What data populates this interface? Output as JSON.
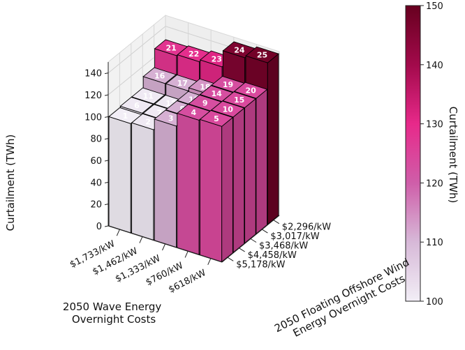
{
  "chart_data": {
    "type": "bar3d",
    "zlabel": "Curtailment (TWh)",
    "x_axis_title": [
      "2050 Wave Energy",
      "Overnight Costs"
    ],
    "y_axis_title": [
      "2050 Floating Offshore Wind",
      "Energy Overnight Costs"
    ],
    "x_categories": [
      "$618/kW",
      "$760/kW",
      "$1,333/kW",
      "$1,462/kW",
      "$1,733/kW"
    ],
    "y_categories": [
      "$5,178/kW",
      "$4,458/kW",
      "$3,468/kW",
      "$3,017/kW",
      "$2,296/kW"
    ],
    "zlim": [
      0,
      150
    ],
    "z_ticks": [
      "0",
      "20",
      "40",
      "60",
      "80",
      "100",
      "120",
      "140"
    ],
    "grid": true,
    "colorbar": {
      "label": "Curtailment (TWh)",
      "min": 100,
      "max": 150,
      "ticks": [
        "100",
        "110",
        "120",
        "130",
        "140",
        "150"
      ],
      "colors": [
        "#f2eef6",
        "#d7b9d8",
        "#cf5ea9",
        "#e7298a",
        "#a20a4b",
        "#67001f"
      ]
    },
    "bars": [
      {
        "id": "1",
        "x": "$1,733/kW",
        "y": "$5,178/kW",
        "value": 100
      },
      {
        "id": "2",
        "x": "$1,462/kW",
        "y": "$5,178/kW",
        "value": 101
      },
      {
        "id": "3",
        "x": "$1,333/kW",
        "y": "$5,178/kW",
        "value": 111
      },
      {
        "id": "4",
        "x": "$760/kW",
        "y": "$5,178/kW",
        "value": 123
      },
      {
        "id": "5",
        "x": "$618/kW",
        "y": "$5,178/kW",
        "value": 124
      },
      {
        "id": "6",
        "x": "$1,733/kW",
        "y": "$4,458/kW",
        "value": 101
      },
      {
        "id": "7",
        "x": "$1,462/kW",
        "y": "$4,458/kW",
        "value": 101
      },
      {
        "id": "8",
        "x": "$1,333/kW",
        "y": "$4,458/kW",
        "value": 111
      },
      {
        "id": "9",
        "x": "$760/kW",
        "y": "$4,458/kW",
        "value": 123
      },
      {
        "id": "10",
        "x": "$618/kW",
        "y": "$4,458/kW",
        "value": 124
      },
      {
        "id": "11",
        "x": "$1,733/kW",
        "y": "$3,468/kW",
        "value": 101
      },
      {
        "id": "12",
        "x": "$1,462/kW",
        "y": "$3,468/kW",
        "value": 101
      },
      {
        "id": "13",
        "x": "$1,333/kW",
        "y": "$3,468/kW",
        "value": 111
      },
      {
        "id": "14",
        "x": "$760/kW",
        "y": "$3,468/kW",
        "value": 123
      },
      {
        "id": "15",
        "x": "$618/kW",
        "y": "$3,468/kW",
        "value": 124
      },
      {
        "id": "16",
        "x": "$1,733/kW",
        "y": "$3,017/kW",
        "value": 111
      },
      {
        "id": "17",
        "x": "$1,462/kW",
        "y": "$3,017/kW",
        "value": 111
      },
      {
        "id": "18",
        "x": "$1,333/kW",
        "y": "$3,017/kW",
        "value": 114
      },
      {
        "id": "19",
        "x": "$760/kW",
        "y": "$3,017/kW",
        "value": 123
      },
      {
        "id": "20",
        "x": "$618/kW",
        "y": "$3,017/kW",
        "value": 124
      },
      {
        "id": "21",
        "x": "$1,733/kW",
        "y": "$2,296/kW",
        "value": 128
      },
      {
        "id": "22",
        "x": "$1,462/kW",
        "y": "$2,296/kW",
        "value": 129
      },
      {
        "id": "23",
        "x": "$1,333/kW",
        "y": "$2,296/kW",
        "value": 131
      },
      {
        "id": "24",
        "x": "$760/kW",
        "y": "$2,296/kW",
        "value": 146
      },
      {
        "id": "25",
        "x": "$618/kW",
        "y": "$2,296/kW",
        "value": 148
      }
    ]
  }
}
